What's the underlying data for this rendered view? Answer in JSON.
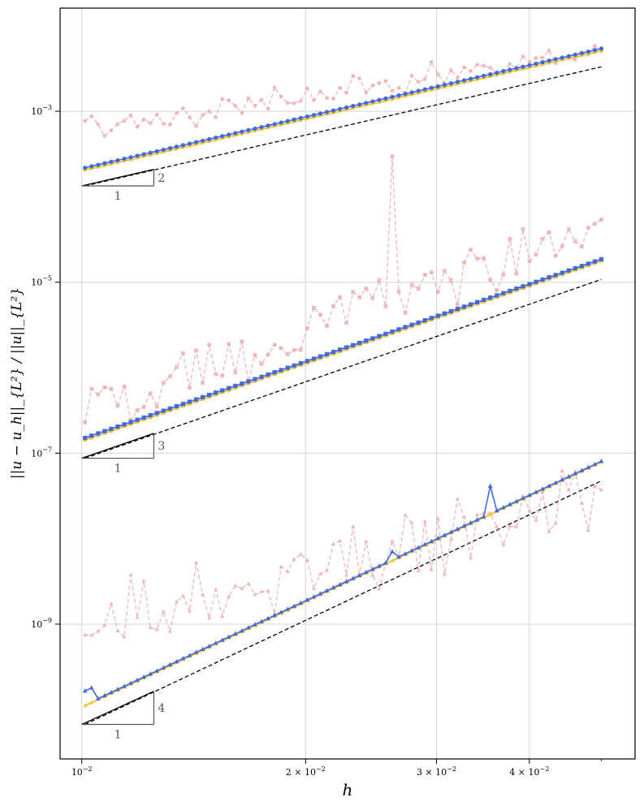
{
  "chart_data": {
    "type": "line",
    "title": "",
    "xlabel": "h",
    "ylabel": "||u − u_h||_{L²} / ||u||_{L²}",
    "xscale": "log",
    "yscale": "log",
    "xlim": [
      0.00935,
      0.0555
    ],
    "ylim": [
      2.65e-11,
      0.0161
    ],
    "grid": true,
    "x_ticks": [
      {
        "value": 0.01,
        "base": "10",
        "exp": "−2",
        "mantissa": ""
      },
      {
        "value": 0.02,
        "base": "10",
        "exp": "−2",
        "mantissa": "2"
      },
      {
        "value": 0.03,
        "base": "10",
        "exp": "−2",
        "mantissa": "3"
      },
      {
        "value": 0.04,
        "base": "10",
        "exp": "−2",
        "mantissa": "4"
      }
    ],
    "y_ticks": [
      {
        "value": 0.001,
        "base": "10",
        "exp": "−3"
      },
      {
        "value": 1e-05,
        "base": "10",
        "exp": "−5"
      },
      {
        "value": 1e-07,
        "base": "10",
        "exp": "−7"
      },
      {
        "value": 1e-09,
        "base": "10",
        "exp": "−9"
      }
    ],
    "groups": [
      {
        "order": 2,
        "marker": "circle",
        "blue": {
          "start": 0.000218,
          "end": 0.00541,
          "color": "#4169e1"
        },
        "yellow": {
          "start": 0.000206,
          "end": 0.0051,
          "color": "#f2c43a"
        },
        "ref": {
          "start": 0.000134,
          "end": 0.00331
        },
        "pink_start": 0.0006,
        "pink_end": 0.0055,
        "pink_noise": 0.3,
        "triangle": {
          "x0": 0.01,
          "x1": 0.0125,
          "y0": 0.000134,
          "slope_label": "2",
          "run_label": "1"
        }
      },
      {
        "order": 3,
        "marker": "square",
        "blue": {
          "start": 1.51e-07,
          "end": 1.86e-05,
          "color": "#4169e1"
        },
        "yellow": {
          "start": 1.43e-07,
          "end": 1.78e-05,
          "color": "#f2c43a"
        },
        "ref": {
          "start": 8.73e-08,
          "end": 1.08e-05
        },
        "pink_start": 3e-07,
        "pink_end": 4.5e-05,
        "pink_noise": 0.55,
        "spike": {
          "x": 0.0263,
          "y": 0.000297
        },
        "triangle": {
          "x0": 0.01,
          "x1": 0.0125,
          "y0": 8.73e-08,
          "slope_label": "3",
          "run_label": "1"
        }
      },
      {
        "order": 4,
        "marker": "triangle",
        "blue": {
          "start": 1.14e-10,
          "end": 8.05e-08,
          "color": "#4169e1"
        },
        "yellow": {
          "start": 1.11e-10,
          "end": 7.88e-08,
          "color": "#f2c43a"
        },
        "ref": {
          "start": 6.71e-11,
          "end": 4.75e-08
        },
        "pink_start": 1e-09,
        "pink_end": 3e-08,
        "pink_noise": 0.75,
        "blue_bumps": [
          {
            "x": 0.0102,
            "factor": 1.45
          },
          {
            "x": 0.0262,
            "factor": 1.25
          },
          {
            "x": 0.0355,
            "factor": 2.1
          }
        ],
        "triangle": {
          "x0": 0.01,
          "x1": 0.0125,
          "y0": 6.71e-11,
          "slope_label": "4",
          "run_label": "1"
        }
      }
    ],
    "n_points": 80,
    "h_min": 0.0101,
    "h_max": 0.05
  }
}
